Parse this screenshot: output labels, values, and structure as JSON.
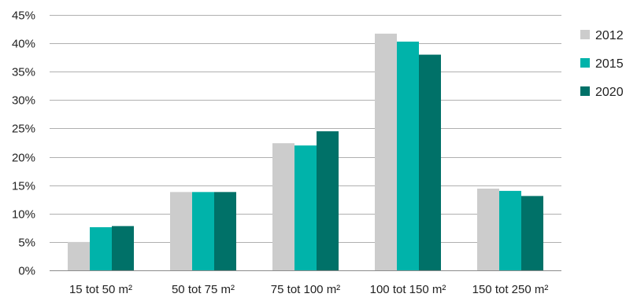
{
  "chart_data": {
    "type": "bar",
    "categories": [
      "15 tot 50 m²",
      "50 tot 75 m²",
      "75 tot 100 m²",
      "100 tot 150 m²",
      "150 tot 250 m²"
    ],
    "series": [
      {
        "name": "2012",
        "values": [
          5.0,
          13.8,
          22.4,
          41.7,
          14.4
        ],
        "color": "#cccccc"
      },
      {
        "name": "2015",
        "values": [
          7.6,
          13.8,
          22.0,
          40.3,
          14.0
        ],
        "color": "#00b3aa"
      },
      {
        "name": "2020",
        "values": [
          7.8,
          13.8,
          24.5,
          38.0,
          13.1
        ],
        "color": "#007168"
      }
    ],
    "y_ticks": [
      "0%",
      "5%",
      "10%",
      "15%",
      "20%",
      "25%",
      "30%",
      "35%",
      "40%",
      "45%"
    ],
    "ylim": [
      0,
      45
    ],
    "grid": true,
    "legend_position": "right",
    "title": "",
    "xlabel": "",
    "ylabel": ""
  }
}
